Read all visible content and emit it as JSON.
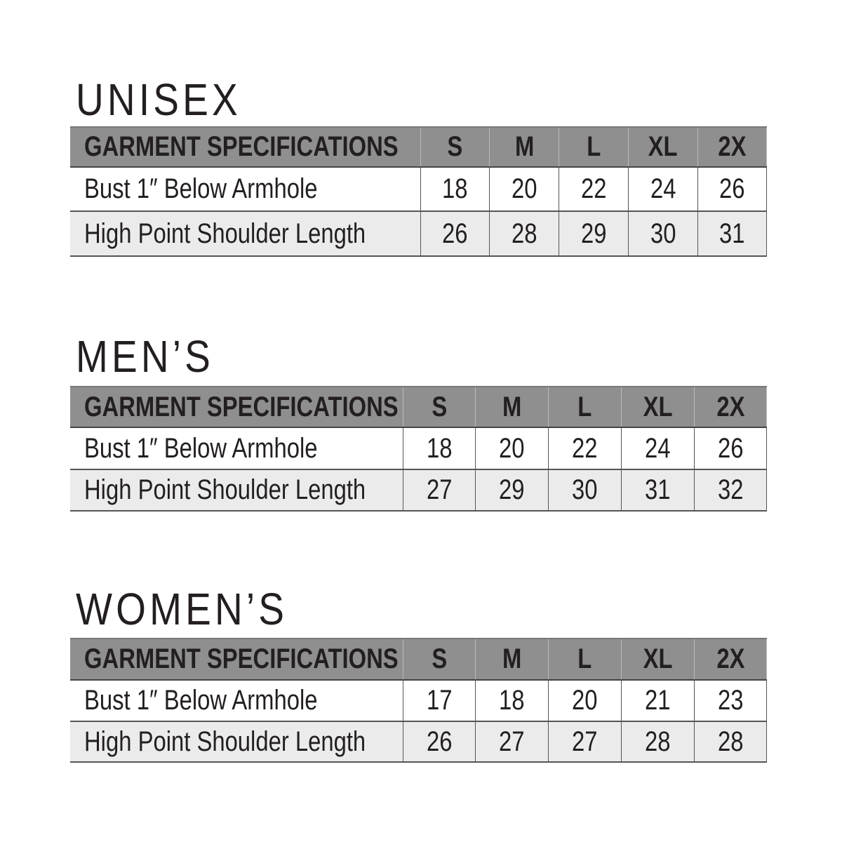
{
  "sections": [
    {
      "title": "UNISEX",
      "header": [
        "GARMENT SPECIFICATIONS",
        "S",
        "M",
        "L",
        "XL",
        "2X"
      ],
      "rows": [
        [
          "Bust 1″ Below Armhole",
          "18",
          "20",
          "22",
          "24",
          "26"
        ],
        [
          "High Point Shoulder Length",
          "26",
          "28",
          "29",
          "30",
          "31"
        ]
      ]
    },
    {
      "title": "MEN’S",
      "header": [
        "GARMENT SPECIFICATIONS",
        "S",
        "M",
        "L",
        "XL",
        "2X"
      ],
      "rows": [
        [
          "Bust 1″ Below Armhole",
          "18",
          "20",
          "22",
          "24",
          "26"
        ],
        [
          "High Point Shoulder Length",
          "27",
          "29",
          "30",
          "31",
          "32"
        ]
      ]
    },
    {
      "title": "WOMEN’S",
      "header": [
        "GARMENT SPECIFICATIONS",
        "S",
        "M",
        "L",
        "XL",
        "2X"
      ],
      "rows": [
        [
          "Bust 1″ Below Armhole",
          "17",
          "18",
          "20",
          "21",
          "23"
        ],
        [
          "High Point Shoulder Length",
          "26",
          "27",
          "27",
          "28",
          "28"
        ]
      ]
    }
  ],
  "colors": {
    "header_bg": "#8f8f8f",
    "alt_row_bg": "#ebebeb",
    "text": "#231f20"
  }
}
